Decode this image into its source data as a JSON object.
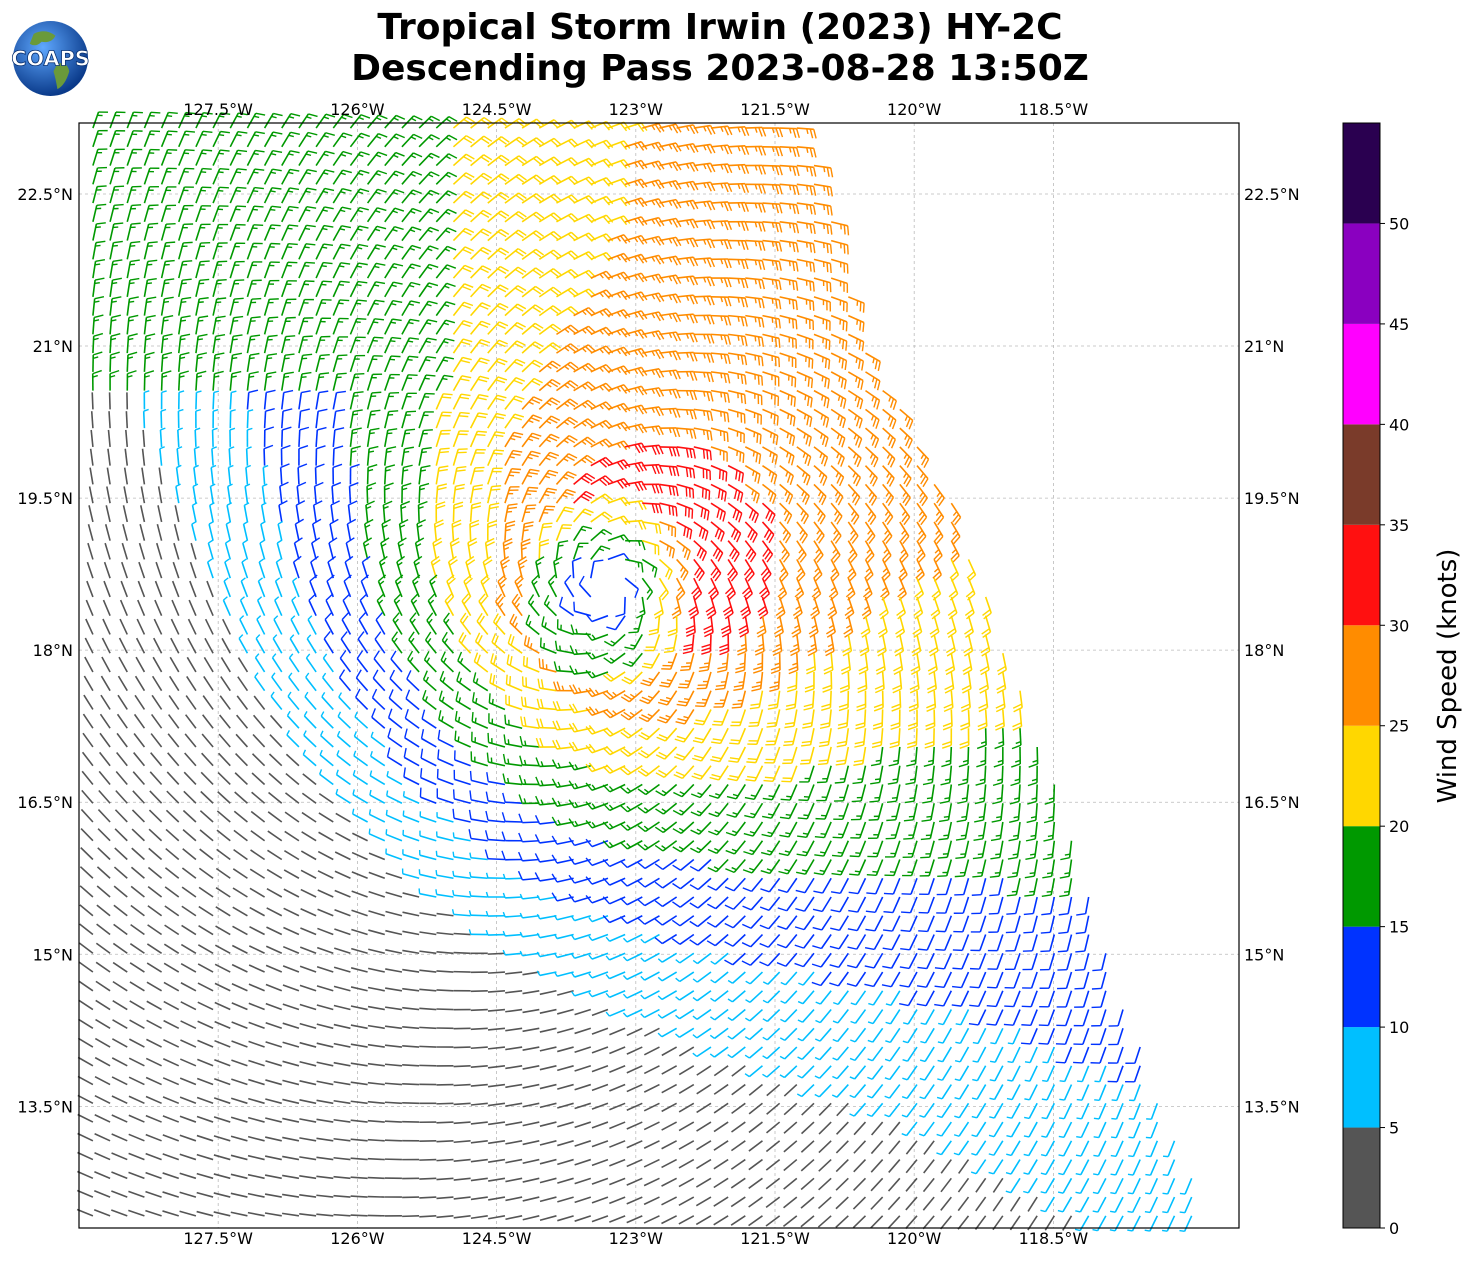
{
  "header": {
    "title_line1": "Tropical Storm Irwin (2023) HY-2C",
    "title_line2": "Descending Pass 2023-08-28 13:50Z"
  },
  "logo": {
    "text": "COAPS",
    "icon": "globe-icon"
  },
  "map": {
    "lon_range": [
      -129.0,
      -116.5
    ],
    "lat_range": [
      12.3,
      23.2
    ],
    "lon_ticks": [
      {
        "value": -127.5,
        "label": "127.5°W"
      },
      {
        "value": -126.0,
        "label": "126°W"
      },
      {
        "value": -124.5,
        "label": "124.5°W"
      },
      {
        "value": -123.0,
        "label": "123°W"
      },
      {
        "value": -121.5,
        "label": "121.5°W"
      },
      {
        "value": -120.0,
        "label": "120°W"
      },
      {
        "value": -118.5,
        "label": "118.5°W"
      }
    ],
    "lat_ticks": [
      {
        "value": 22.5,
        "label": "22.5°N"
      },
      {
        "value": 21.0,
        "label": "21°N"
      },
      {
        "value": 19.5,
        "label": "19.5°N"
      },
      {
        "value": 18.0,
        "label": "18°N"
      },
      {
        "value": 16.5,
        "label": "16.5°N"
      },
      {
        "value": 15.0,
        "label": "15°N"
      },
      {
        "value": 13.5,
        "label": "13.5°N"
      }
    ],
    "gridlines": true,
    "storm_center": {
      "lon": -123.3,
      "lat": 18.6
    },
    "swath_east_edge": [
      {
        "lat": 23.2,
        "lon": -121.2
      },
      {
        "lat": 21.0,
        "lon": -120.5
      },
      {
        "lat": 19.5,
        "lon": -119.6
      },
      {
        "lat": 18.0,
        "lon": -119.0
      },
      {
        "lat": 16.5,
        "lon": -118.4
      },
      {
        "lat": 15.0,
        "lon": -117.9
      },
      {
        "lat": 13.5,
        "lon": -117.3
      },
      {
        "lat": 12.3,
        "lon": -116.8
      }
    ]
  },
  "colorbar": {
    "title": "Wind Speed (knots)",
    "levels": [
      0,
      5,
      10,
      15,
      20,
      25,
      30,
      35,
      40,
      45,
      50,
      55
    ],
    "tick_labels": [
      "0",
      "5",
      "10",
      "15",
      "20",
      "25",
      "30",
      "35",
      "40",
      "45",
      "50"
    ],
    "colors": [
      "#555555",
      "#00bfff",
      "#0033ff",
      "#009900",
      "#ffd700",
      "#ff8c00",
      "#ff1010",
      "#7a3b2a",
      "#ff00ff",
      "#8a00c0",
      "#2a0050"
    ]
  }
}
